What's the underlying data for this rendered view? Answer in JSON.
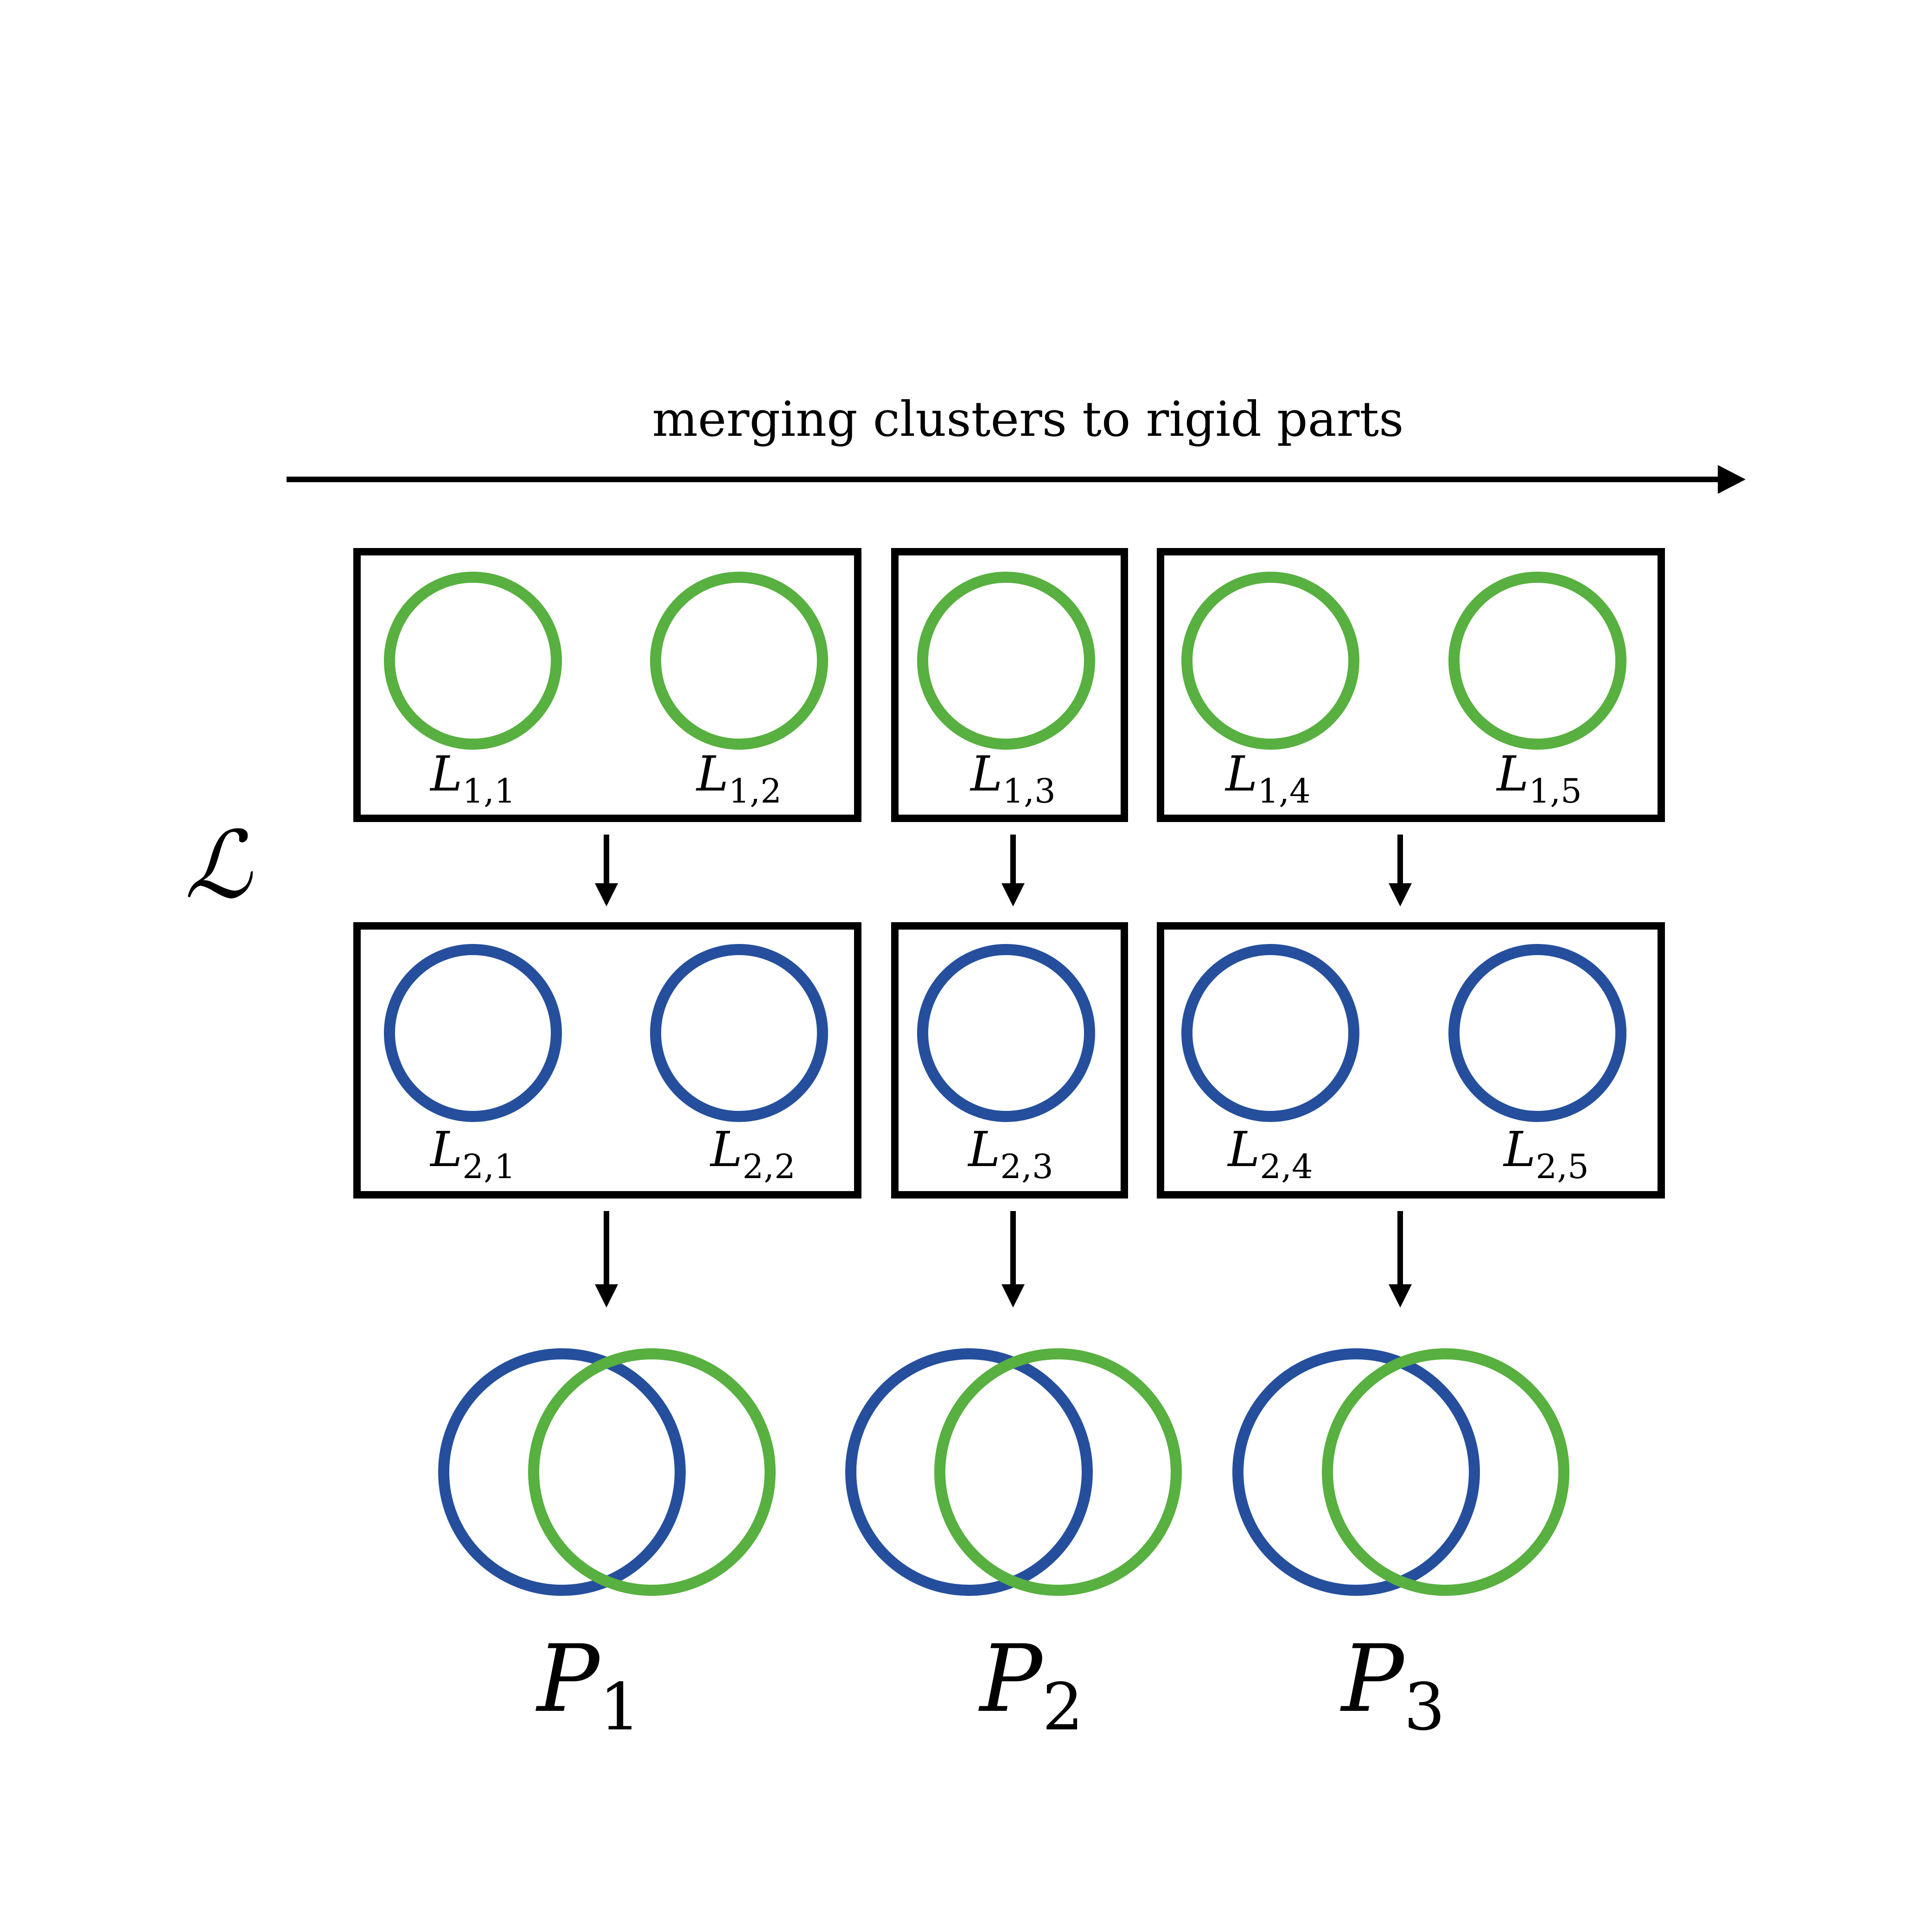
{
  "caption": "merging clusters to rigid parts",
  "set_symbol": "ℒ",
  "colors": {
    "level1": "#57b03f",
    "level2": "#254f9d",
    "lines": "#000000"
  },
  "groups": [
    {
      "level1": [
        {
          "base": "L",
          "sub": "1,1"
        },
        {
          "base": "L",
          "sub": "1,2"
        }
      ],
      "level2": [
        {
          "base": "L",
          "sub": "2,1"
        },
        {
          "base": "L",
          "sub": "2,2"
        }
      ],
      "part": {
        "base": "P",
        "sub": "1"
      }
    },
    {
      "level1": [
        {
          "base": "L",
          "sub": "1,3"
        }
      ],
      "level2": [
        {
          "base": "L",
          "sub": "2,3"
        }
      ],
      "part": {
        "base": "P",
        "sub": "2"
      }
    },
    {
      "level1": [
        {
          "base": "L",
          "sub": "1,4"
        },
        {
          "base": "L",
          "sub": "1,5"
        }
      ],
      "level2": [
        {
          "base": "L",
          "sub": "2,4"
        },
        {
          "base": "L",
          "sub": "2,5"
        }
      ],
      "part": {
        "base": "P",
        "sub": "3"
      }
    }
  ]
}
